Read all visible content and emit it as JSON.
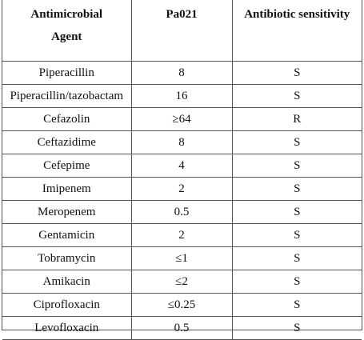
{
  "table": {
    "headers": {
      "agent_line1": "Antimicrobial",
      "agent_line2": "Agent",
      "isolate": "Pa021",
      "sensitivity": "Antibiotic sensitivity"
    },
    "rows": [
      {
        "agent": "Piperacillin",
        "mic": "8",
        "sensitivity": "S"
      },
      {
        "agent": "Piperacillin/tazobactam",
        "mic": "16",
        "sensitivity": "S"
      },
      {
        "agent": "Cefazolin",
        "mic": "≥64",
        "sensitivity": "R"
      },
      {
        "agent": "Ceftazidime",
        "mic": "8",
        "sensitivity": "S"
      },
      {
        "agent": "Cefepime",
        "mic": "4",
        "sensitivity": "S"
      },
      {
        "agent": "Imipenem",
        "mic": "2",
        "sensitivity": "S"
      },
      {
        "agent": "Meropenem",
        "mic": "0.5",
        "sensitivity": "S"
      },
      {
        "agent": "Gentamicin",
        "mic": "2",
        "sensitivity": "S"
      },
      {
        "agent": "Tobramycin",
        "mic": "≤1",
        "sensitivity": "S"
      },
      {
        "agent": "Amikacin",
        "mic": "≤2",
        "sensitivity": "S"
      },
      {
        "agent": "Ciprofloxacin",
        "mic": "≤0.25",
        "sensitivity": "S"
      },
      {
        "agent": "Levofloxacin",
        "mic": "0.5",
        "sensitivity": "S"
      }
    ]
  }
}
